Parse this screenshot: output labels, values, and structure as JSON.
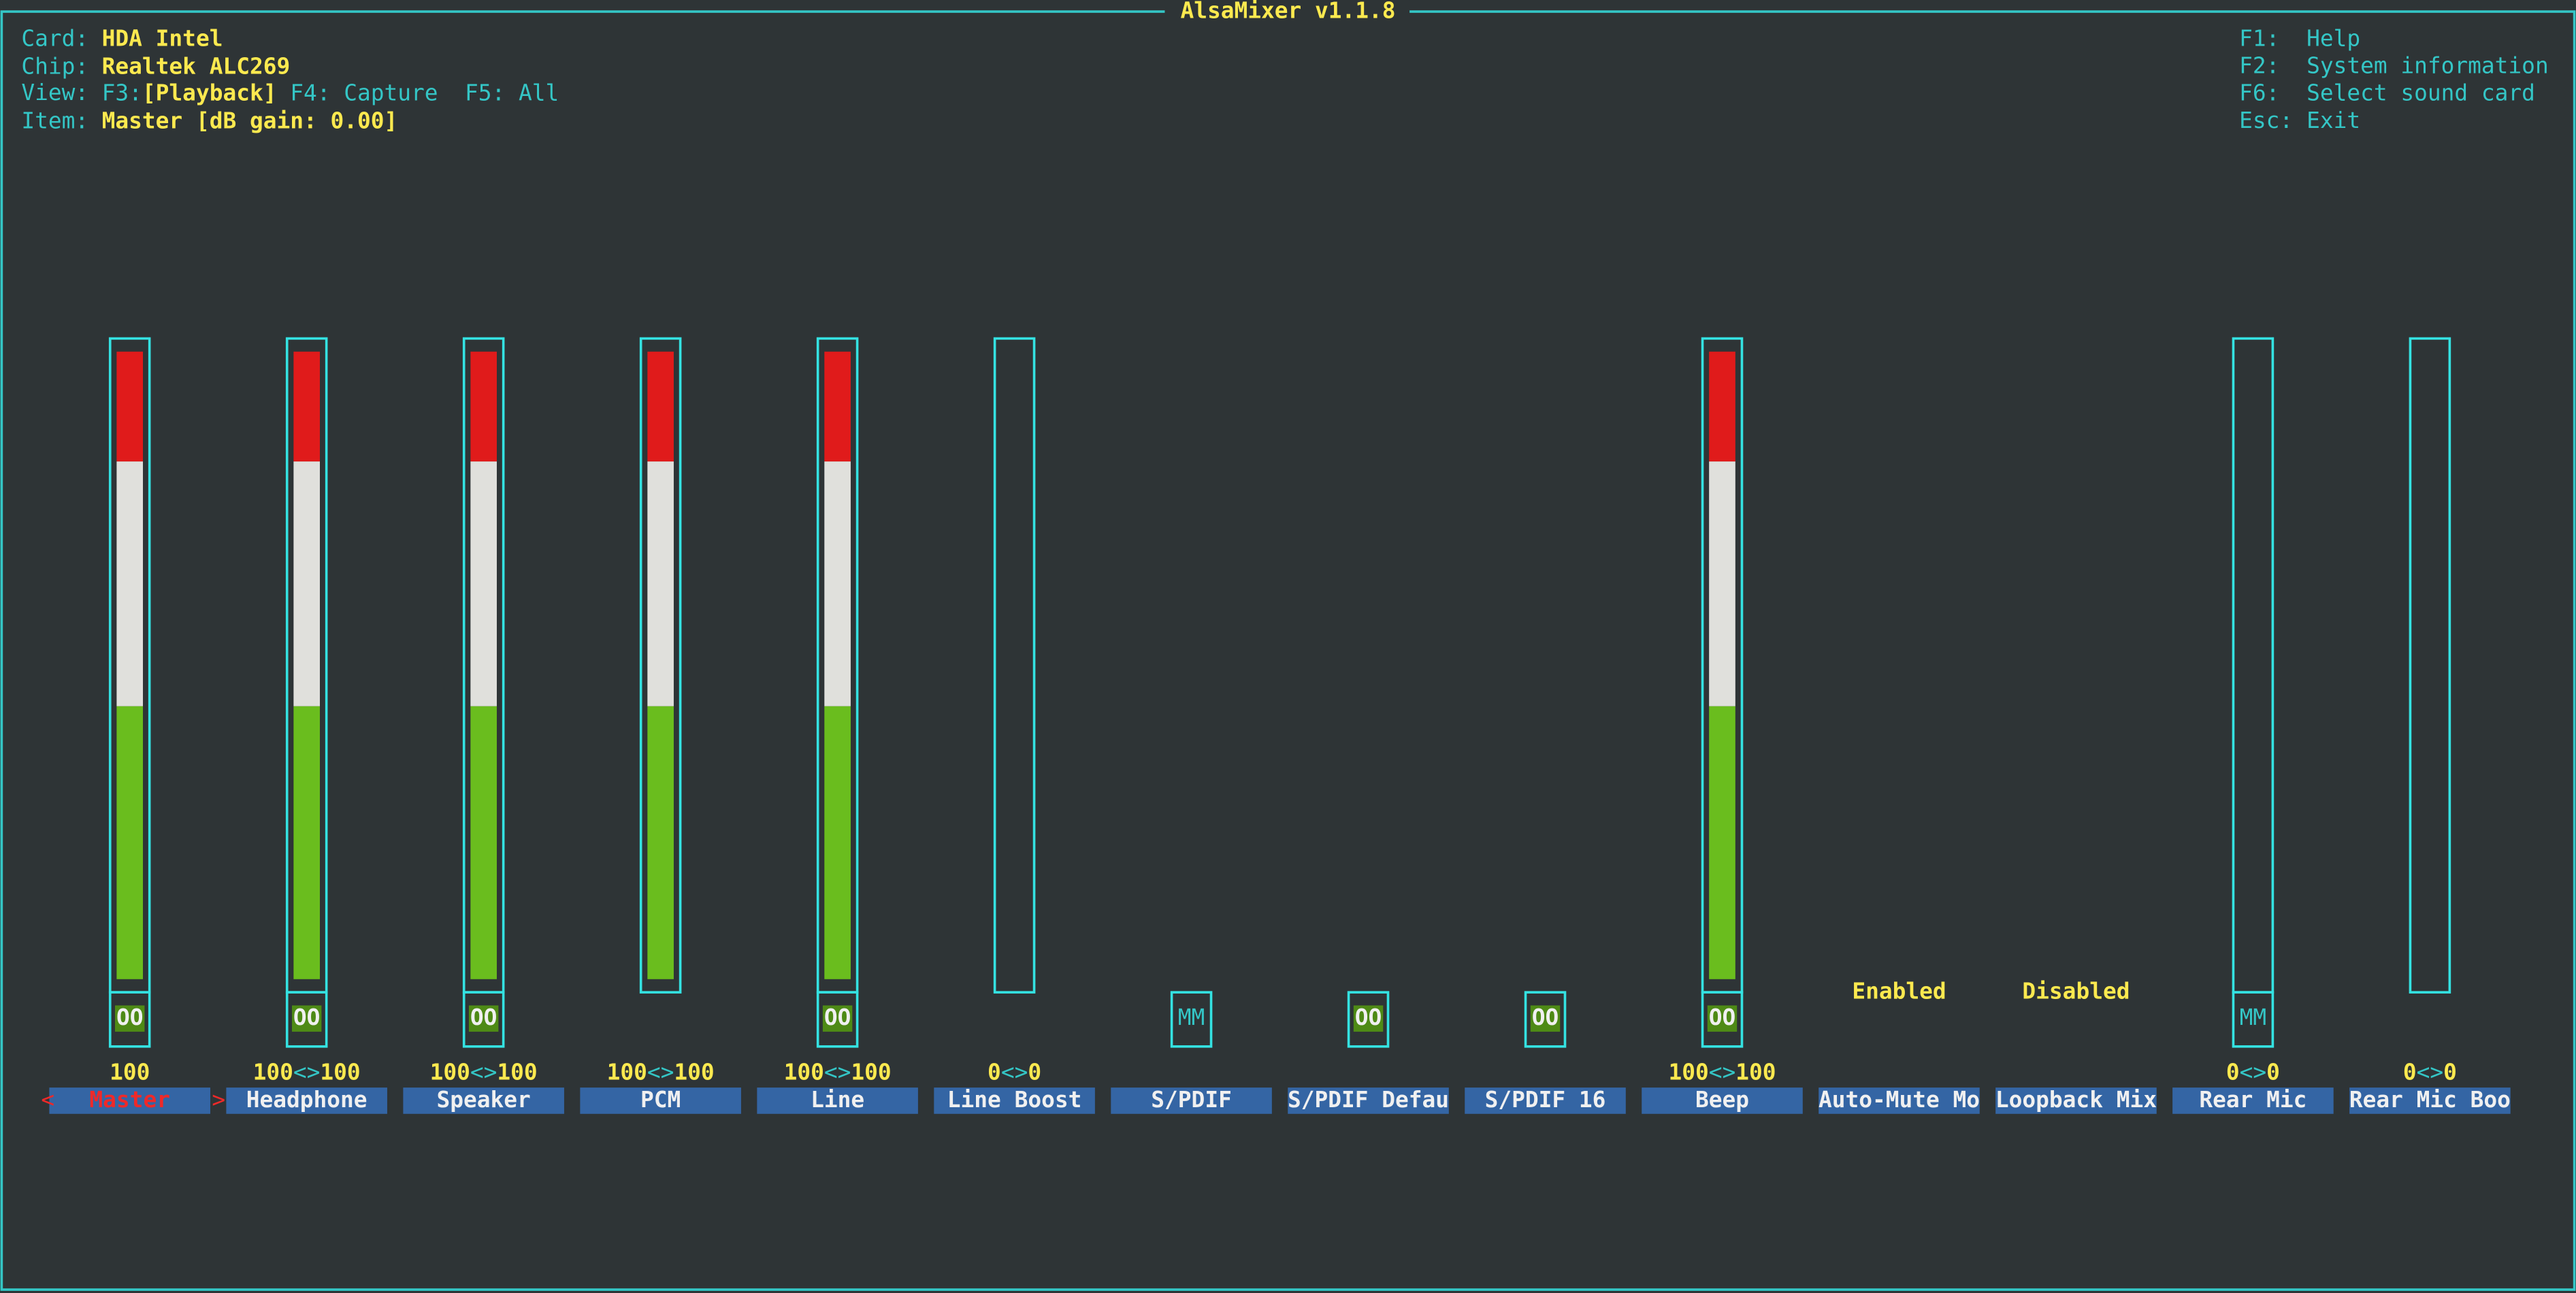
{
  "title": "AlsaMixer v1.1.8",
  "info": [
    {
      "label": "Card:",
      "value": "HDA Intel"
    },
    {
      "label": "Chip:",
      "value": "Realtek ALC269"
    },
    {
      "label": "Item:",
      "value": "Master [dB gain: 0.00]"
    }
  ],
  "view": {
    "label": "View:",
    "key": "F3:",
    "current": "[Playback]",
    "others": "F4: Capture  F5: All"
  },
  "help": [
    {
      "key": "F1:",
      "text": "Help"
    },
    {
      "key": "F2:",
      "text": "System information"
    },
    {
      "key": "F6:",
      "text": "Select sound card"
    },
    {
      "key": "Esc:",
      "text": "Exit"
    }
  ],
  "selection_marks": [
    "<",
    ">"
  ],
  "separator": "<>",
  "channels": [
    {
      "label": "Master",
      "values": [
        100
      ],
      "mute": "OO",
      "selected": true
    },
    {
      "label": "Headphone",
      "values": [
        100,
        100
      ],
      "mute": "OO"
    },
    {
      "label": "Speaker",
      "values": [
        100,
        100
      ],
      "mute": "OO"
    },
    {
      "label": "PCM",
      "values": [
        100,
        100
      ]
    },
    {
      "label": "Line",
      "values": [
        100,
        100
      ],
      "mute": "OO"
    },
    {
      "label": "Line Boost",
      "values": [
        0,
        0
      ]
    },
    {
      "label": "S/PDIF",
      "mute": "MM"
    },
    {
      "label": "S/PDIF Defau",
      "mute": "OO"
    },
    {
      "label": "S/PDIF 16",
      "mute": "OO"
    },
    {
      "label": "Beep",
      "values": [
        100,
        100
      ],
      "mute": "OO"
    },
    {
      "label": "Auto-Mute Mo",
      "enum": "Enabled"
    },
    {
      "label": "Loopback Mix",
      "enum": "Disabled"
    },
    {
      "label": "Rear Mic",
      "values": [
        0,
        0
      ],
      "mute": "MM"
    },
    {
      "label": "Rear Mic Boo",
      "values": [
        0,
        0
      ]
    }
  ]
}
